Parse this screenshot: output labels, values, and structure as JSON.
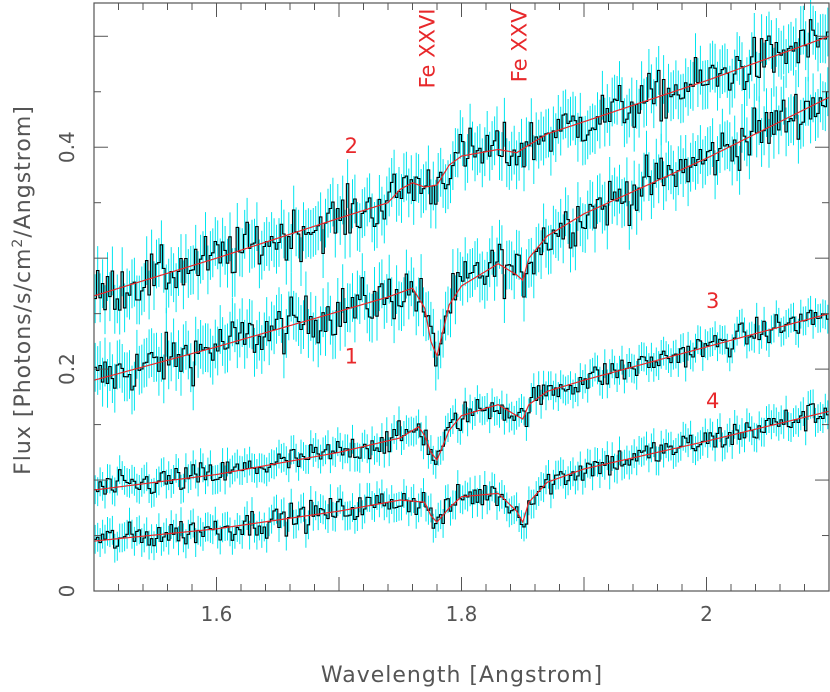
{
  "chart_data": {
    "type": "line",
    "title": "",
    "xlabel": "Wavelength [Angstrom]",
    "ylabel_prefix": "Flux [Photons/s/cm",
    "ylabel_sup": "2",
    "ylabel_suffix": "/Angstrom]",
    "xlim": [
      1.5,
      2.1
    ],
    "ylim": [
      0,
      0.53
    ],
    "x_ticks": [
      {
        "v": 1.6,
        "label": "1.6"
      },
      {
        "v": 1.8,
        "label": "1.8"
      },
      {
        "v": 2.0,
        "label": "2"
      }
    ],
    "y_ticks": [
      {
        "v": 0,
        "label": "0"
      },
      {
        "v": 0.2,
        "label": "0.2"
      },
      {
        "v": 0.4,
        "label": "0.4"
      }
    ],
    "grid": false,
    "colors": {
      "data": "#000000",
      "error": "#00e5ee",
      "model": "#e8282b",
      "annotation": "#e8282b",
      "axis": "#555555"
    },
    "series": [
      {
        "name": "1",
        "label_pos": [
          1.71,
          0.205
        ],
        "model": {
          "x": [
            1.5,
            1.6,
            1.7,
            1.74,
            1.76,
            1.77,
            1.775,
            1.78,
            1.79,
            1.8,
            1.83,
            1.845,
            1.85,
            1.855,
            1.87,
            1.9,
            2.0,
            2.1
          ],
          "y": [
            0.19,
            0.22,
            0.252,
            0.265,
            0.273,
            0.255,
            0.225,
            0.212,
            0.258,
            0.275,
            0.295,
            0.285,
            0.28,
            0.3,
            0.32,
            0.34,
            0.39,
            0.445
          ]
        }
      },
      {
        "name": "2",
        "label_pos": [
          1.71,
          0.395
        ],
        "model": {
          "x": [
            1.5,
            1.6,
            1.7,
            1.74,
            1.75,
            1.76,
            1.77,
            1.78,
            1.79,
            1.8,
            1.83,
            1.845,
            1.855,
            1.87,
            1.9,
            2.0,
            2.1
          ],
          "y": [
            0.266,
            0.3,
            0.336,
            0.35,
            0.362,
            0.368,
            0.364,
            0.366,
            0.384,
            0.392,
            0.398,
            0.395,
            0.402,
            0.412,
            0.423,
            0.46,
            0.5
          ]
        }
      },
      {
        "name": "3",
        "label_pos": [
          2.005,
          0.255
        ],
        "model": {
          "x": [
            1.5,
            1.6,
            1.7,
            1.75,
            1.765,
            1.77,
            1.775,
            1.78,
            1.79,
            1.8,
            1.83,
            1.845,
            1.85,
            1.855,
            1.87,
            1.9,
            2.0,
            2.1
          ],
          "y": [
            0.091,
            0.105,
            0.125,
            0.138,
            0.148,
            0.14,
            0.125,
            0.118,
            0.145,
            0.158,
            0.168,
            0.158,
            0.155,
            0.168,
            0.18,
            0.19,
            0.22,
            0.25
          ]
        }
      },
      {
        "name": "4",
        "label_pos": [
          2.005,
          0.165
        ],
        "model": {
          "x": [
            1.5,
            1.6,
            1.7,
            1.75,
            1.77,
            1.775,
            1.78,
            1.79,
            1.8,
            1.83,
            1.845,
            1.85,
            1.855,
            1.87,
            1.9,
            2.0,
            2.1
          ],
          "y": [
            0.045,
            0.056,
            0.072,
            0.082,
            0.08,
            0.068,
            0.062,
            0.075,
            0.085,
            0.088,
            0.072,
            0.062,
            0.08,
            0.098,
            0.11,
            0.135,
            0.162
          ]
        }
      }
    ],
    "annotations": [
      {
        "text": "Fe XXVI",
        "x": 1.778,
        "y": 0.525,
        "rotate": -90
      },
      {
        "text": "Fe XXV",
        "x": 1.853,
        "y": 0.525,
        "rotate": -90
      }
    ]
  }
}
